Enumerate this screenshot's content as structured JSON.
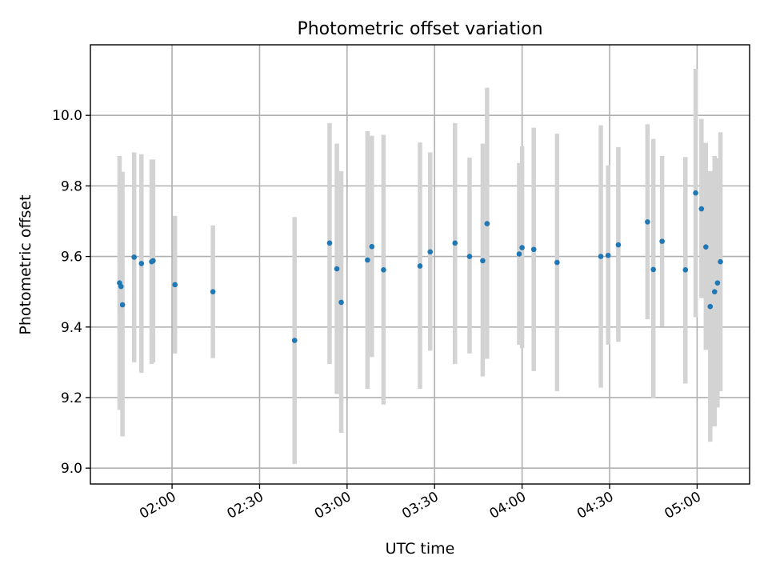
{
  "chart_data": {
    "type": "scatter",
    "title": "Photometric offset variation",
    "xlabel": "UTC time",
    "ylabel": "Photometric offset",
    "x_axis": {
      "kind": "time",
      "range": [
        "01:32",
        "05:18"
      ],
      "ticks": [
        "02:00",
        "02:30",
        "03:00",
        "03:30",
        "04:00",
        "04:30",
        "05:00"
      ],
      "tick_label_rotation": "30° slanted"
    },
    "y_axis": {
      "range": [
        8.955,
        10.2
      ],
      "ticks": [
        "9.0",
        "9.2",
        "9.4",
        "9.6",
        "9.8",
        "10.0"
      ]
    },
    "grid": true,
    "legend": "none",
    "colors": {
      "points": "#1f77b4",
      "error_bars": "#d3d3d3",
      "grid": "#b0b0b0"
    },
    "points": [
      {
        "x": "01:42",
        "y": 9.525,
        "ylow": 9.165,
        "yhigh": 9.885
      },
      {
        "x": "01:42.5",
        "y": 9.515,
        "ylow": 9.19,
        "yhigh": 9.84
      },
      {
        "x": "01:43",
        "y": 9.463,
        "ylow": 9.09,
        "yhigh": 9.84
      },
      {
        "x": "01:47",
        "y": 9.598,
        "ylow": 9.3,
        "yhigh": 9.895
      },
      {
        "x": "01:49.5",
        "y": 9.58,
        "ylow": 9.27,
        "yhigh": 9.89
      },
      {
        "x": "01:53",
        "y": 9.585,
        "ylow": 9.295,
        "yhigh": 9.875
      },
      {
        "x": "01:53.5",
        "y": 9.588,
        "ylow": 9.3,
        "yhigh": 9.875
      },
      {
        "x": "02:01",
        "y": 9.52,
        "ylow": 9.325,
        "yhigh": 9.715
      },
      {
        "x": "02:14",
        "y": 9.5,
        "ylow": 9.312,
        "yhigh": 9.688
      },
      {
        "x": "02:42",
        "y": 9.362,
        "ylow": 9.012,
        "yhigh": 9.712
      },
      {
        "x": "02:54",
        "y": 9.638,
        "ylow": 9.295,
        "yhigh": 9.978
      },
      {
        "x": "02:56.5",
        "y": 9.565,
        "ylow": 9.21,
        "yhigh": 9.92
      },
      {
        "x": "02:58",
        "y": 9.47,
        "ylow": 9.1,
        "yhigh": 9.842
      },
      {
        "x": "03:07",
        "y": 9.59,
        "ylow": 9.225,
        "yhigh": 9.955
      },
      {
        "x": "03:08.5",
        "y": 9.628,
        "ylow": 9.315,
        "yhigh": 9.942
      },
      {
        "x": "03:12.5",
        "y": 9.562,
        "ylow": 9.18,
        "yhigh": 9.945
      },
      {
        "x": "03:25",
        "y": 9.573,
        "ylow": 9.225,
        "yhigh": 9.923
      },
      {
        "x": "03:28.5",
        "y": 9.613,
        "ylow": 9.333,
        "yhigh": 9.895
      },
      {
        "x": "03:37",
        "y": 9.638,
        "ylow": 9.295,
        "yhigh": 9.978
      },
      {
        "x": "03:42",
        "y": 9.6,
        "ylow": 9.325,
        "yhigh": 9.88
      },
      {
        "x": "03:46.5",
        "y": 9.588,
        "ylow": 9.26,
        "yhigh": 9.92
      },
      {
        "x": "03:48",
        "y": 9.693,
        "ylow": 9.31,
        "yhigh": 10.078
      },
      {
        "x": "03:59",
        "y": 9.607,
        "ylow": 9.35,
        "yhigh": 9.865
      },
      {
        "x": "04:00",
        "y": 9.625,
        "ylow": 9.34,
        "yhigh": 9.912
      },
      {
        "x": "04:04",
        "y": 9.62,
        "ylow": 9.275,
        "yhigh": 9.965
      },
      {
        "x": "04:12",
        "y": 9.583,
        "ylow": 9.218,
        "yhigh": 9.948
      },
      {
        "x": "04:27",
        "y": 9.6,
        "ylow": 9.228,
        "yhigh": 9.972
      },
      {
        "x": "04:29.5",
        "y": 9.603,
        "ylow": 9.35,
        "yhigh": 9.858
      },
      {
        "x": "04:33",
        "y": 9.633,
        "ylow": 9.358,
        "yhigh": 9.91
      },
      {
        "x": "04:43",
        "y": 9.698,
        "ylow": 9.422,
        "yhigh": 9.975
      },
      {
        "x": "04:45",
        "y": 9.563,
        "ylow": 9.198,
        "yhigh": 9.933
      },
      {
        "x": "04:48",
        "y": 9.643,
        "ylow": 9.402,
        "yhigh": 9.885
      },
      {
        "x": "04:56",
        "y": 9.562,
        "ylow": 9.24,
        "yhigh": 9.882
      },
      {
        "x": "04:59.5",
        "y": 9.78,
        "ylow": 9.428,
        "yhigh": 10.132
      },
      {
        "x": "05:01.5",
        "y": 9.735,
        "ylow": 9.482,
        "yhigh": 9.99
      },
      {
        "x": "05:03",
        "y": 9.627,
        "ylow": 9.335,
        "yhigh": 9.922
      },
      {
        "x": "05:04.5",
        "y": 9.458,
        "ylow": 9.075,
        "yhigh": 9.842
      },
      {
        "x": "05:06",
        "y": 9.5,
        "ylow": 9.118,
        "yhigh": 9.885
      },
      {
        "x": "05:07",
        "y": 9.525,
        "ylow": 9.172,
        "yhigh": 9.878
      },
      {
        "x": "05:08",
        "y": 9.585,
        "ylow": 9.218,
        "yhigh": 9.952
      }
    ]
  }
}
